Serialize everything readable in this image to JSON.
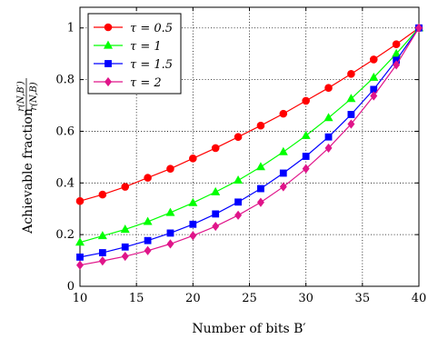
{
  "chart_data": {
    "type": "line",
    "xlabel": "Number of bits B′",
    "ylabel": "Achievable fraction r(N,B′)/r(N,B)",
    "xlim": [
      10,
      40
    ],
    "ylim": [
      0,
      1.08
    ],
    "xticks": [
      "10",
      "15",
      "20",
      "25",
      "30",
      "35",
      "40"
    ],
    "yticks": [
      "0",
      "0.2",
      "0.4",
      "0.6",
      "0.8",
      "1"
    ],
    "grid": true,
    "legend_position": "top-left",
    "x": [
      10,
      12,
      14,
      16,
      18,
      20,
      22,
      24,
      26,
      28,
      30,
      32,
      34,
      36,
      38,
      40
    ],
    "series": [
      {
        "name": "τ = 0.5",
        "color": "#ff0000",
        "marker": "circle",
        "values": [
          0.33,
          0.355,
          0.385,
          0.42,
          0.455,
          0.495,
          0.535,
          0.578,
          0.622,
          0.668,
          0.718,
          0.768,
          0.822,
          0.878,
          0.937,
          1.0
        ]
      },
      {
        "name": "τ = 1",
        "color": "#00ff00",
        "marker": "triangle",
        "values": [
          0.17,
          0.195,
          0.22,
          0.25,
          0.285,
          0.323,
          0.365,
          0.41,
          0.462,
          0.52,
          0.583,
          0.652,
          0.726,
          0.808,
          0.9,
          1.0
        ]
      },
      {
        "name": "τ = 1.5",
        "color": "#0000ff",
        "marker": "square",
        "values": [
          0.113,
          0.13,
          0.152,
          0.177,
          0.206,
          0.24,
          0.28,
          0.326,
          0.378,
          0.438,
          0.503,
          0.578,
          0.665,
          0.762,
          0.875,
          1.0
        ]
      },
      {
        "name": "τ = 2",
        "color": "#e0158a",
        "marker": "diamond",
        "values": [
          0.082,
          0.098,
          0.116,
          0.138,
          0.164,
          0.196,
          0.232,
          0.275,
          0.325,
          0.385,
          0.455,
          0.535,
          0.628,
          0.737,
          0.857,
          1.0
        ]
      }
    ]
  }
}
